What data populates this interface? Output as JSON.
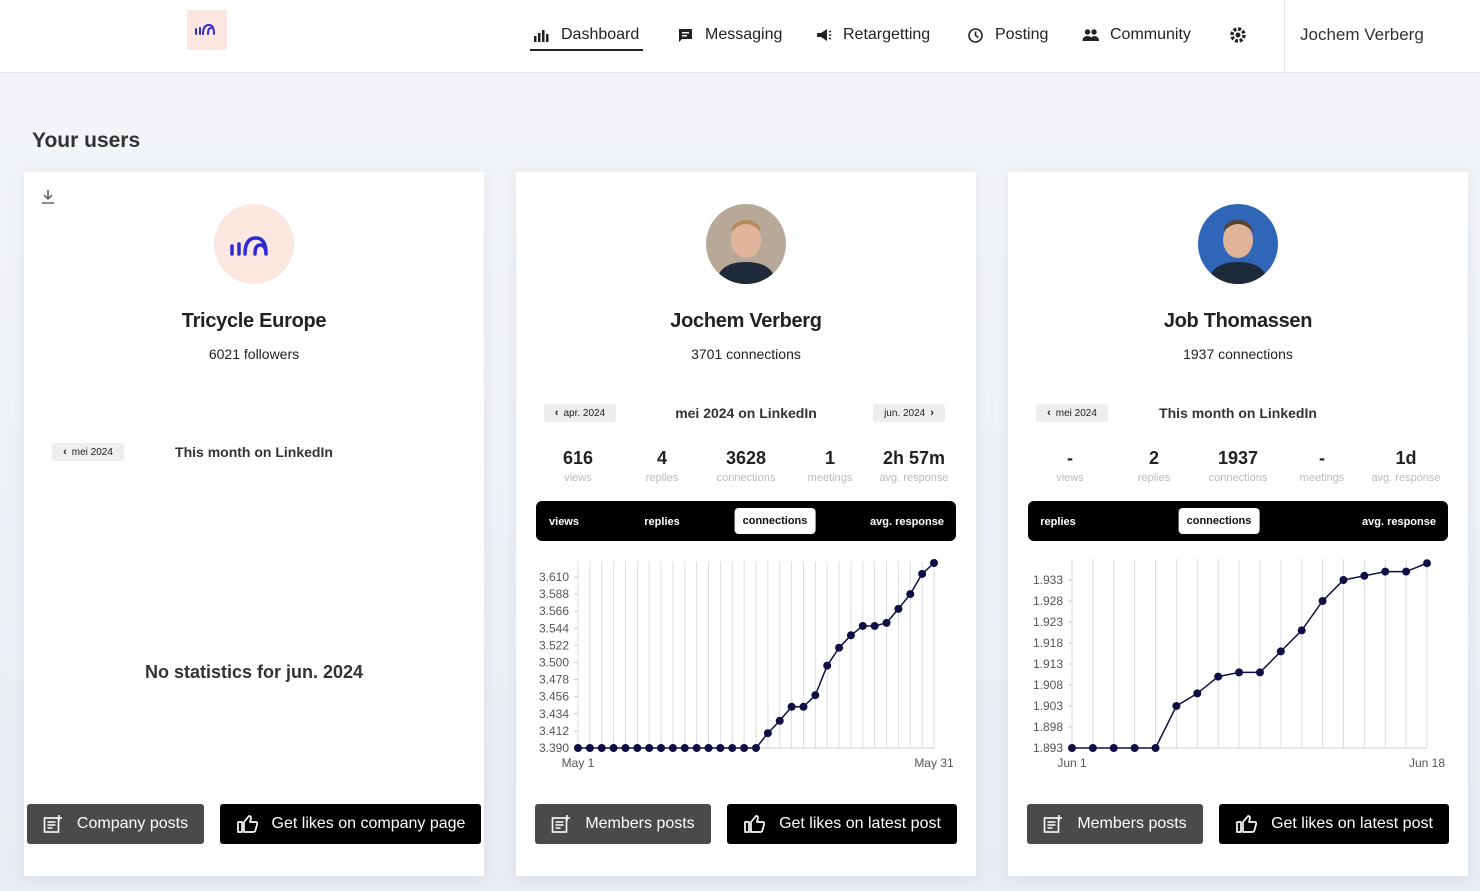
{
  "nav": {
    "items": [
      "Dashboard",
      "Messaging",
      "Retargetting",
      "Posting",
      "Community"
    ],
    "user": "Jochem Verberg"
  },
  "heading": "Your users",
  "cards": [
    {
      "name": "Tricycle Europe",
      "subtitle": "6021 followers",
      "prev": "mei 2024",
      "period": "This month on LinkedIn",
      "empty": "No statistics for jun. 2024",
      "buttons": [
        "Company posts",
        "Get likes on company page"
      ]
    },
    {
      "name": "Jochem Verberg",
      "subtitle": "3701 connections",
      "prev": "apr. 2024",
      "period": "mei 2024 on LinkedIn",
      "next": "jun. 2024",
      "stats": [
        {
          "value": 616,
          "label": "views"
        },
        {
          "value": 4,
          "label": "replies"
        },
        {
          "value": 3628,
          "label": "connections"
        },
        {
          "value": 1,
          "label": "meetings"
        },
        {
          "value": "2h 57m",
          "label": "avg. response"
        }
      ],
      "tabs": [
        "views",
        "replies",
        "connections",
        "avg. response"
      ],
      "active_tab": 2,
      "buttons": [
        "Members posts",
        "Get likes on latest post"
      ]
    },
    {
      "name": "Job Thomassen",
      "subtitle": "1937 connections",
      "prev": "mei 2024",
      "period": "This month on LinkedIn",
      "stats": [
        {
          "value": "-",
          "label": "views"
        },
        {
          "value": 2,
          "label": "replies"
        },
        {
          "value": 1937,
          "label": "connections"
        },
        {
          "value": "-",
          "label": "meetings"
        },
        {
          "value": "1d",
          "label": "avg. response"
        }
      ],
      "tabs": [
        "replies",
        "connections",
        "avg. response"
      ],
      "active_tab": 1,
      "buttons": [
        "Members posts",
        "Get likes on latest post"
      ]
    }
  ],
  "chart_data": [
    {
      "type": "line",
      "color": "#0f0f45",
      "categories": [
        "May 1",
        null,
        null,
        null,
        null,
        null,
        null,
        null,
        null,
        null,
        null,
        null,
        null,
        null,
        null,
        null,
        null,
        null,
        null,
        null,
        null,
        null,
        null,
        null,
        null,
        null,
        null,
        null,
        null,
        null,
        "May 31"
      ],
      "values": [
        3390,
        3390,
        3390,
        3390,
        3390,
        3390,
        3390,
        3390,
        3390,
        3390,
        3390,
        3390,
        3390,
        3390,
        3390,
        3390,
        3409,
        3425,
        3443,
        3443,
        3458,
        3496,
        3519,
        3535,
        3547,
        3547,
        3551,
        3569,
        3588,
        3614,
        3628
      ],
      "ylim": [
        3390,
        3630
      ],
      "yticks": [
        {
          "value": 3390,
          "label": "3.390"
        },
        {
          "value": 3412,
          "label": "3.412"
        },
        {
          "value": 3434,
          "label": "3.434"
        },
        {
          "value": 3456,
          "label": "3.456"
        },
        {
          "value": 3478,
          "label": "3.478"
        },
        {
          "value": 3500,
          "label": "3.500"
        },
        {
          "value": 3522,
          "label": "3.522"
        },
        {
          "value": 3544,
          "label": "3.544"
        },
        {
          "value": 3566,
          "label": "3.566"
        },
        {
          "value": 3588,
          "label": "3.588"
        },
        {
          "value": 3610,
          "label": "3.610"
        }
      ],
      "grid": true
    },
    {
      "type": "line",
      "color": "#0f0f45",
      "categories": [
        "Jun 1",
        null,
        null,
        null,
        null,
        null,
        null,
        null,
        null,
        null,
        null,
        null,
        null,
        null,
        null,
        null,
        null,
        "Jun 18"
      ],
      "values": [
        1893,
        1893,
        1893,
        1893,
        1893,
        1903,
        1906,
        1910,
        1911,
        1911,
        1916,
        1921,
        1928,
        1933,
        1934,
        1935,
        1935,
        1937
      ],
      "ylim": [
        1893,
        1938
      ],
      "yticks": [
        {
          "value": 1893,
          "label": "1.893"
        },
        {
          "value": 1898,
          "label": "1.898"
        },
        {
          "value": 1903,
          "label": "1.903"
        },
        {
          "value": 1908,
          "label": "1.908"
        },
        {
          "value": 1913,
          "label": "1.913"
        },
        {
          "value": 1918,
          "label": "1.918"
        },
        {
          "value": 1923,
          "label": "1.923"
        },
        {
          "value": 1928,
          "label": "1.928"
        },
        {
          "value": 1933,
          "label": "1.933"
        }
      ],
      "grid": true
    }
  ]
}
